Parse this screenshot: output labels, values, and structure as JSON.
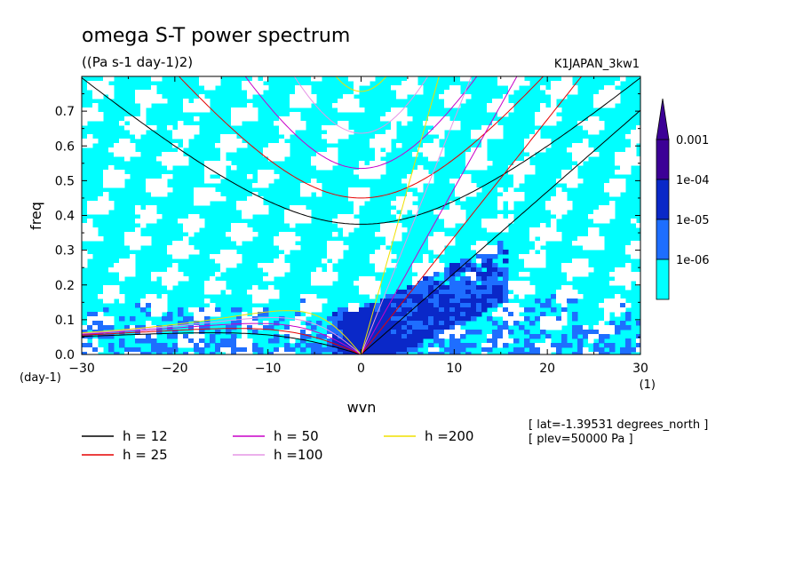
{
  "chart_data": {
    "type": "heatmap",
    "title": "omega S-T power spectrum",
    "subtitle": "((Pa s-1 day-1)2)",
    "dataset_label": "K1JAPAN_3kw1",
    "xlabel": "wvn",
    "x_unit": "(1)",
    "ylabel": "freq",
    "y_unit": "(day-1)",
    "xlim": [
      -30,
      30
    ],
    "ylim": [
      0,
      0.8
    ],
    "x_ticks": [
      "-30",
      "-20",
      "-10",
      "0",
      "10",
      "20",
      "30"
    ],
    "y_ticks": [
      "0.0",
      "0.1",
      "0.2",
      "0.3",
      "0.4",
      "0.5",
      "0.6",
      "0.7"
    ],
    "grid": false,
    "colorbar": {
      "labels": [
        "1e-06",
        "1e-05",
        "1e-04",
        "0.001"
      ],
      "levels": [
        1e-06,
        1e-05,
        0.0001,
        0.001
      ],
      "colors": [
        "#ffffff",
        "#00ffff",
        "#1e6eff",
        "#0a28c8",
        "#3c0096"
      ]
    },
    "dispersion_curves": [
      {
        "name": "h = 12",
        "h": 12,
        "color": "#000000"
      },
      {
        "name": "h = 25",
        "h": 25,
        "color": "#e60000"
      },
      {
        "name": "h = 50",
        "h": 50,
        "color": "#c800c8"
      },
      {
        "name": "h =100",
        "h": 100,
        "color": "#e696e6"
      },
      {
        "name": "h =200",
        "h": 200,
        "color": "#f0e000"
      }
    ],
    "annotations": [
      "[ lat=-1.39531 degrees_north ]",
      "[ plev=50000 Pa ]"
    ]
  }
}
